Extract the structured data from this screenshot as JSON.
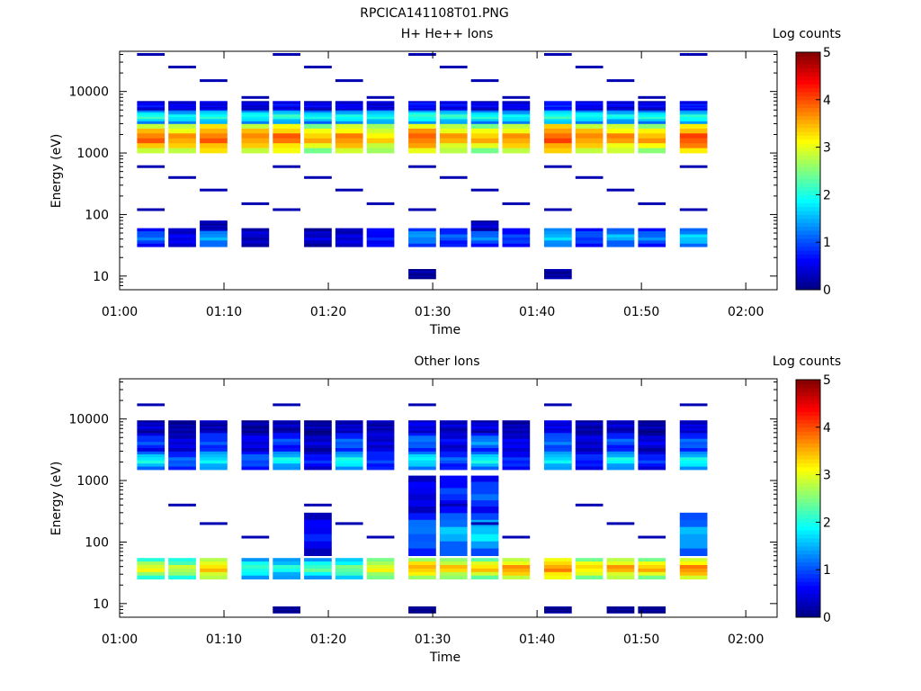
{
  "figure_title": "RPCICA141108T01.PNG",
  "colorbar": {
    "label": "Log counts",
    "min": 0,
    "max": 5,
    "ticks": [
      "0",
      "1",
      "2",
      "3",
      "4",
      "5"
    ],
    "colormap": "jet"
  },
  "chart_data": [
    {
      "type": "heatmap",
      "title": "H+ He++ Ions",
      "xlabel": "Time",
      "ylabel": "Energy (eV)",
      "x_ticks": [
        "01:00",
        "01:10",
        "01:20",
        "01:30",
        "01:40",
        "01:50",
        "02:00"
      ],
      "y_ticks": [
        "10",
        "100",
        "1000",
        "10000"
      ],
      "y_scale": "log",
      "ylim": [
        6,
        45000
      ],
      "time_bins": [
        "01:03",
        "01:06",
        "01:09",
        "01:13",
        "01:16",
        "01:19",
        "01:22",
        "01:25",
        "01:29",
        "01:32",
        "01:35",
        "01:38",
        "01:42",
        "01:45",
        "01:48",
        "01:51",
        "01:55"
      ],
      "z_units": "log counts",
      "bands": [
        {
          "e_low": 1000,
          "e_high": 3000,
          "values": [
            4.0,
            3.8,
            4.1,
            3.9,
            4.0,
            3.6,
            3.9,
            3.5,
            4.1,
            3.7,
            3.6,
            3.8,
            4.2,
            3.9,
            3.8,
            3.7,
            4.2
          ]
        },
        {
          "e_low": 3000,
          "e_high": 5000,
          "values": [
            2.2,
            2.0,
            2.2,
            2.1,
            2.2,
            2.0,
            2.1,
            2.1,
            2.3,
            2.2,
            2.1,
            2.0,
            2.3,
            2.1,
            2.0,
            2.1,
            2.2
          ]
        },
        {
          "e_low": 5000,
          "e_high": 7000,
          "values": [
            0.7,
            0.6,
            0.6,
            0.5,
            0.7,
            0.6,
            0.6,
            0.5,
            0.8,
            0.7,
            0.6,
            0.6,
            0.9,
            0.7,
            0.6,
            0.6,
            0.8
          ]
        },
        {
          "e_low": 30,
          "e_high": 60,
          "values": [
            1.2,
            0.6,
            1.6,
            0.4,
            null,
            0.4,
            0.5,
            0.8,
            1.5,
            1.1,
            1.3,
            1.0,
            1.8,
            1.1,
            1.6,
            1.3,
            1.8
          ]
        },
        {
          "e_low": 55,
          "e_high": 80,
          "values": [
            null,
            null,
            0.3,
            null,
            null,
            null,
            null,
            null,
            null,
            null,
            0.4,
            null,
            null,
            null,
            null,
            null,
            null
          ]
        },
        {
          "e_low": 9,
          "e_high": 13,
          "values": [
            null,
            null,
            null,
            null,
            null,
            null,
            null,
            null,
            0.2,
            null,
            null,
            null,
            0.2,
            null,
            null,
            null,
            null
          ]
        }
      ],
      "scatter_energies": [
        40000,
        25000,
        15000,
        8000,
        600,
        400,
        250,
        150,
        120
      ]
    },
    {
      "type": "heatmap",
      "title": "Other Ions",
      "xlabel": "Time",
      "ylabel": "Energy (eV)",
      "x_ticks": [
        "01:00",
        "01:10",
        "01:20",
        "01:30",
        "01:40",
        "01:50",
        "02:00"
      ],
      "y_ticks": [
        "10",
        "100",
        "1000",
        "10000"
      ],
      "y_scale": "log",
      "ylim": [
        6,
        45000
      ],
      "time_bins": [
        "01:03",
        "01:06",
        "01:09",
        "01:13",
        "01:16",
        "01:19",
        "01:22",
        "01:25",
        "01:29",
        "01:32",
        "01:35",
        "01:38",
        "01:42",
        "01:45",
        "01:48",
        "01:51",
        "01:55"
      ],
      "z_units": "log counts",
      "bands": [
        {
          "e_low": 25,
          "e_high": 55,
          "values": [
            3.2,
            3.0,
            3.6,
            2.3,
            2.1,
            2.4,
            2.6,
            3.3,
            3.7,
            3.5,
            3.5,
            3.8,
            3.9,
            3.5,
            3.7,
            3.6,
            3.9
          ]
        },
        {
          "e_low": 1500,
          "e_high": 3000,
          "values": [
            2.0,
            1.2,
            2.0,
            1.2,
            2.0,
            0.8,
            2.1,
            1.0,
            2.0,
            1.1,
            2.0,
            0.9,
            2.0,
            0.9,
            2.0,
            0.9,
            2.1
          ]
        },
        {
          "e_low": 3000,
          "e_high": 6000,
          "values": [
            1.0,
            0.5,
            1.1,
            0.6,
            1.0,
            0.4,
            1.2,
            0.5,
            1.3,
            0.6,
            1.4,
            0.6,
            1.3,
            0.5,
            1.1,
            0.5,
            1.2
          ]
        },
        {
          "e_low": 6000,
          "e_high": 9500,
          "values": [
            0.4,
            0.2,
            0.3,
            0.2,
            0.3,
            0.2,
            0.4,
            0.3,
            0.6,
            0.4,
            0.5,
            0.3,
            0.6,
            0.3,
            0.4,
            0.2,
            0.5
          ]
        },
        {
          "e_low": 60,
          "e_high": 300,
          "values": [
            null,
            null,
            null,
            null,
            null,
            0.7,
            null,
            null,
            1.3,
            1.6,
            1.8,
            null,
            null,
            null,
            null,
            null,
            1.6
          ]
        },
        {
          "e_low": 300,
          "e_high": 1200,
          "values": [
            null,
            null,
            null,
            null,
            null,
            null,
            null,
            null,
            0.6,
            0.9,
            1.1,
            null,
            null,
            null,
            null,
            null,
            null
          ]
        },
        {
          "e_low": 7,
          "e_high": 9,
          "values": [
            null,
            null,
            null,
            null,
            0.1,
            null,
            null,
            null,
            0.1,
            null,
            null,
            null,
            0.1,
            null,
            0.1,
            0.1,
            null
          ]
        }
      ],
      "scatter_energies": [
        17000,
        400,
        200,
        120
      ]
    }
  ]
}
